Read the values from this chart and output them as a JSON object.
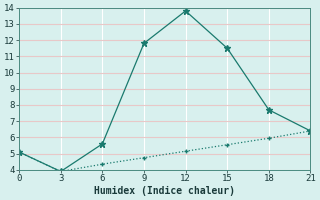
{
  "line1_x": [
    0,
    3,
    6,
    9,
    12,
    15,
    18,
    21
  ],
  "line1_y": [
    5.1,
    3.9,
    5.6,
    11.8,
    13.8,
    11.5,
    7.7,
    6.4
  ],
  "line2_x": [
    0,
    3,
    6,
    9,
    12,
    15,
    18,
    21
  ],
  "line2_y": [
    5.1,
    3.9,
    4.35,
    4.75,
    5.15,
    5.55,
    5.95,
    6.4
  ],
  "color": "#1a7a6e",
  "xlabel": "Humidex (Indice chaleur)",
  "ylim": [
    4,
    14
  ],
  "xlim": [
    0,
    21
  ],
  "yticks": [
    4,
    5,
    6,
    7,
    8,
    9,
    10,
    11,
    12,
    13,
    14
  ],
  "xticks": [
    0,
    3,
    6,
    9,
    12,
    15,
    18,
    21
  ],
  "bg_color": "#d8f0ee",
  "grid_color_h": "#e8c8c8",
  "grid_color_v": "#ffffff"
}
